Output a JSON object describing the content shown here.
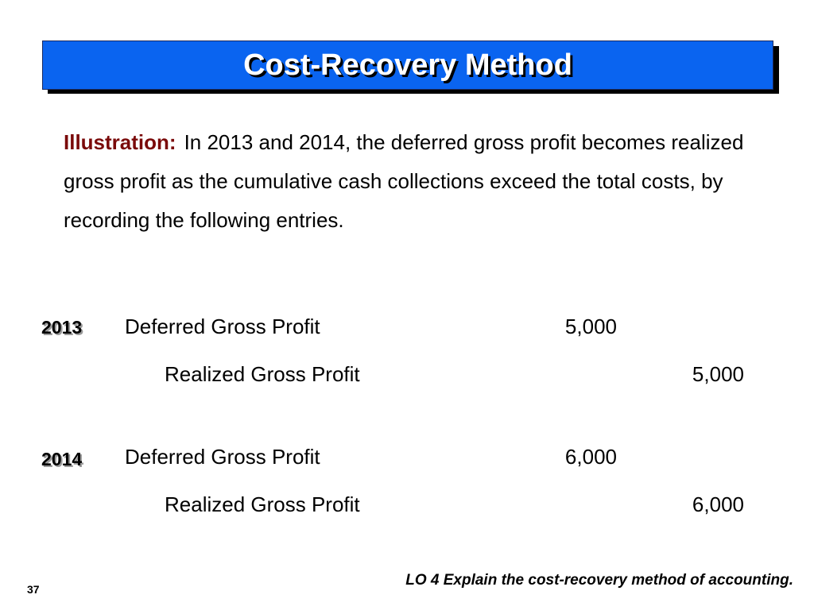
{
  "slide": {
    "title": "Cost-Recovery Method",
    "illustration_label": "Illustration:",
    "paragraph": "In 2013 and 2014, the deferred gross profit becomes realized gross profit as the cumulative cash collections exceed the total costs, by recording the following entries.",
    "entries": [
      {
        "year": "2013",
        "debit_account": "Deferred Gross Profit",
        "debit_amount": "5,000",
        "credit_account": "Realized Gross Profit",
        "credit_amount": "5,000"
      },
      {
        "year": "2014",
        "debit_account": "Deferred Gross Profit",
        "debit_amount": "6,000",
        "credit_account": "Realized Gross Profit",
        "credit_amount": "6,000"
      }
    ],
    "learning_objective": "LO 4  Explain the cost-recovery method of accounting.",
    "page_number": "37"
  },
  "colors": {
    "title_background": "#0a64f0",
    "title_text": "#ffffff",
    "illustration_label": "#7a0a0a"
  }
}
